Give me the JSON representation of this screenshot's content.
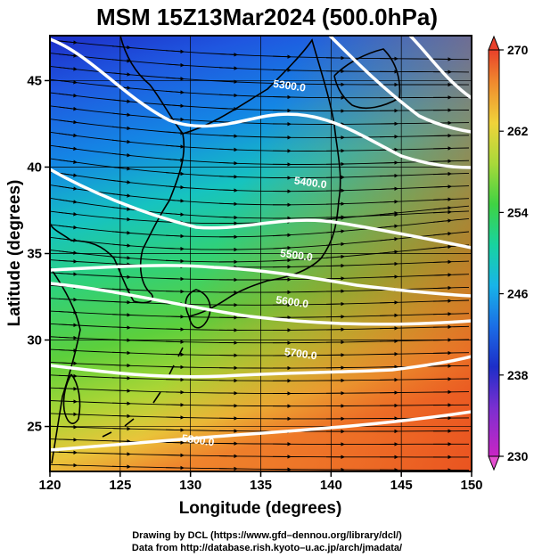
{
  "title": "MSM 15Z13Mar2024 (500.0hPa)",
  "map": {
    "xlabel": "Longitude (degrees)",
    "ylabel": "Latitude  (degrees)",
    "xlim": [
      120,
      150
    ],
    "ylim": [
      22.4,
      47.6
    ],
    "x_ticks": [
      "120",
      "125",
      "130",
      "135",
      "140",
      "145",
      "150"
    ],
    "y_ticks": [
      "25",
      "30",
      "35",
      "40",
      "45"
    ],
    "field": "temperature (K), shaded",
    "contour_field": "geopotential height (m)",
    "contours": [
      {
        "label": "5300.0",
        "label_lon": 137.0,
        "label_lat": 44.5
      },
      {
        "label": "5400.0",
        "label_lon": 138.5,
        "label_lat": 38.9
      },
      {
        "label": "5500.0",
        "label_lon": 137.5,
        "label_lat": 34.7
      },
      {
        "label": "5600.0",
        "label_lon": 137.2,
        "label_lat": 32.0
      },
      {
        "label": "5700.0",
        "label_lon": 137.8,
        "label_lat": 29.0
      },
      {
        "label": "5800.0",
        "label_lon": 130.5,
        "label_lat": 24.0
      }
    ],
    "colorbar": {
      "min": 230,
      "max": 270,
      "labels": [
        "270",
        "262",
        "254",
        "246",
        "238",
        "230"
      ]
    }
  },
  "credits": {
    "line1": "Drawing by DCL (https://www.gfd–dennou.org/library/dcl/)",
    "line2": "Data from http://database.rish.kyoto–u.ac.jp/arch/jmadata/"
  }
}
